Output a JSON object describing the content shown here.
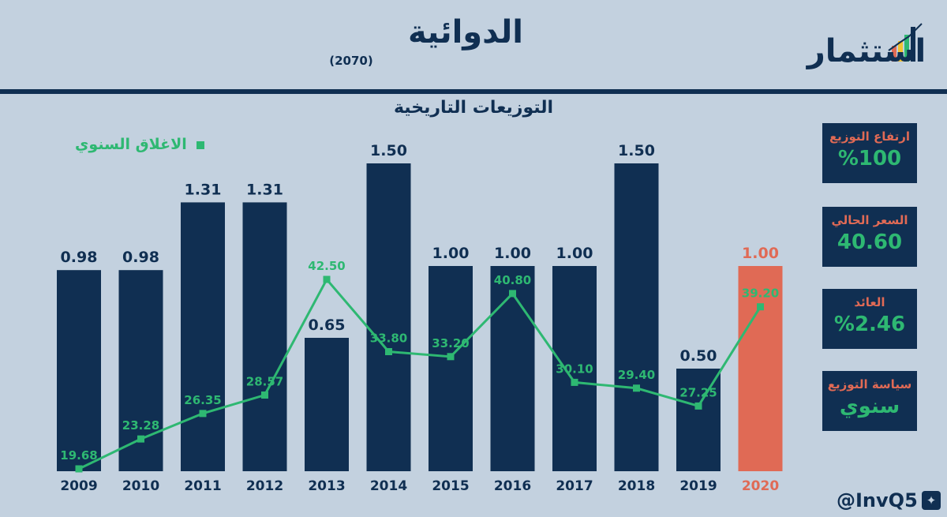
{
  "header": {
    "title": "الدوائية",
    "code": "(2070)",
    "logo_text": "استثمار"
  },
  "subtitle": "التوزيعات التاريخية",
  "legend": "الاغلاق السنوي",
  "colors": {
    "background": "#c3d1df",
    "bar": "#102f52",
    "bar_highlight": "#e06a55",
    "line": "#2eb872",
    "label": "#102f52"
  },
  "cards": [
    {
      "label": "ارتفاع التوزيع",
      "value": "%100"
    },
    {
      "label": "السعر الحالي",
      "value": "40.60"
    },
    {
      "label": "العائد",
      "value": "%2.46"
    },
    {
      "label": "سياسة التوزيع",
      "value": "سنوي"
    }
  ],
  "footer": {
    "handle": "@InvQ5",
    "icon": "twitter-icon"
  },
  "chart_data": {
    "type": "bar",
    "categories": [
      "2009",
      "2010",
      "2011",
      "2012",
      "2013",
      "2014",
      "2015",
      "2016",
      "2017",
      "2018",
      "2019",
      "2020"
    ],
    "series": [
      {
        "values": [
          0.98,
          0.98,
          1.31,
          1.31,
          0.65,
          1.5,
          1.0,
          1.0,
          1.0,
          1.5,
          0.5,
          1.0
        ],
        "labels": [
          "0.98",
          "0.98",
          "1.31",
          "1.31",
          "0.65",
          "1.50",
          "1.00",
          "1.00",
          "1.00",
          "1.50",
          "0.50",
          "1.00"
        ],
        "highlight_index": 11
      },
      {
        "name": "الاغلاق السنوي",
        "type": "line",
        "values": [
          19.68,
          23.28,
          26.35,
          28.57,
          42.5,
          33.8,
          33.2,
          40.8,
          30.1,
          29.4,
          27.25,
          39.2
        ],
        "labels": [
          "19.68",
          "23.28",
          "26.35",
          "28.57",
          "42.50",
          "33.80",
          "33.20",
          "40.80",
          "30.10",
          "29.40",
          "27.25",
          "39.20"
        ]
      }
    ],
    "ylim_bars": [
      0,
      1.6
    ],
    "ylim_line": [
      19.68,
      42.5
    ],
    "grid": false,
    "legend_position": "top-left"
  }
}
